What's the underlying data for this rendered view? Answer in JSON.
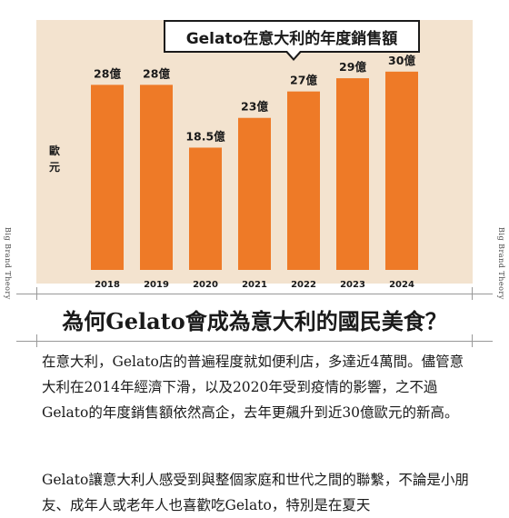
{
  "chart_data": {
    "type": "bar",
    "title": "Gelato在意大利的年度銷售額",
    "ylabel": "歐元",
    "categories": [
      "2018",
      "2019",
      "2020",
      "2021",
      "2022",
      "2023",
      "2024"
    ],
    "values": [
      28,
      28,
      18.5,
      23,
      27,
      29,
      30
    ],
    "value_labels": [
      "28億",
      "28億",
      "18.5億",
      "23億",
      "27億",
      "29億",
      "30億"
    ],
    "ylim": [
      0,
      33
    ],
    "grid": false,
    "bar_color": "#ee7a27",
    "background_color": "#f3e3cf"
  },
  "side_label": "Big Brand Theory",
  "article": {
    "title": "為何Gelato會成為意大利的國民美食？",
    "paragraphs": [
      "在意大利，Gelato店的普遍程度就如便利店，多達近4萬間。儘管意大利在2014年經濟下滑，以及2020年受到疫情的影響，之不過Gelato的年度銷售額依然高企，去年更飆升到近30億歐元的新高。",
      "Gelato讓意大利人感受到與整個家庭和世代之間的聯繫，不論是小朋友、成年人或老年人也喜歡吃Gelato，特別是在夏天"
    ]
  }
}
